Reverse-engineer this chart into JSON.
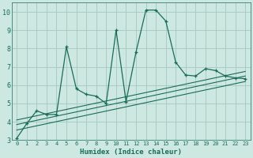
{
  "xlabel": "Humidex (Indice chaleur)",
  "bg_color": "#cce8e0",
  "grid_color": "#aaccc4",
  "line_color": "#1a6b5a",
  "xlim": [
    -0.5,
    23.5
  ],
  "ylim": [
    3,
    10.5
  ],
  "xticks": [
    0,
    1,
    2,
    3,
    4,
    5,
    6,
    7,
    8,
    9,
    10,
    11,
    12,
    13,
    14,
    15,
    16,
    17,
    18,
    19,
    20,
    21,
    22,
    23
  ],
  "yticks": [
    3,
    4,
    5,
    6,
    7,
    8,
    9,
    10
  ],
  "series_x": [
    0,
    1,
    2,
    3,
    4,
    5,
    6,
    7,
    8,
    9,
    10,
    11,
    12,
    13,
    14,
    15,
    16,
    17,
    18,
    19,
    20,
    21,
    22,
    23
  ],
  "series_y": [
    3.1,
    3.9,
    4.6,
    4.4,
    4.4,
    8.1,
    5.8,
    5.5,
    5.4,
    5.0,
    9.0,
    5.1,
    7.8,
    10.1,
    10.1,
    9.5,
    7.25,
    6.55,
    6.5,
    6.9,
    6.8,
    6.5,
    6.4,
    6.35
  ],
  "line1_x": [
    0,
    23
  ],
  "line1_y": [
    3.55,
    6.2
  ],
  "line2_x": [
    0,
    23
  ],
  "line2_y": [
    3.85,
    6.5
  ],
  "line3_x": [
    0,
    23
  ],
  "line3_y": [
    4.1,
    6.75
  ]
}
